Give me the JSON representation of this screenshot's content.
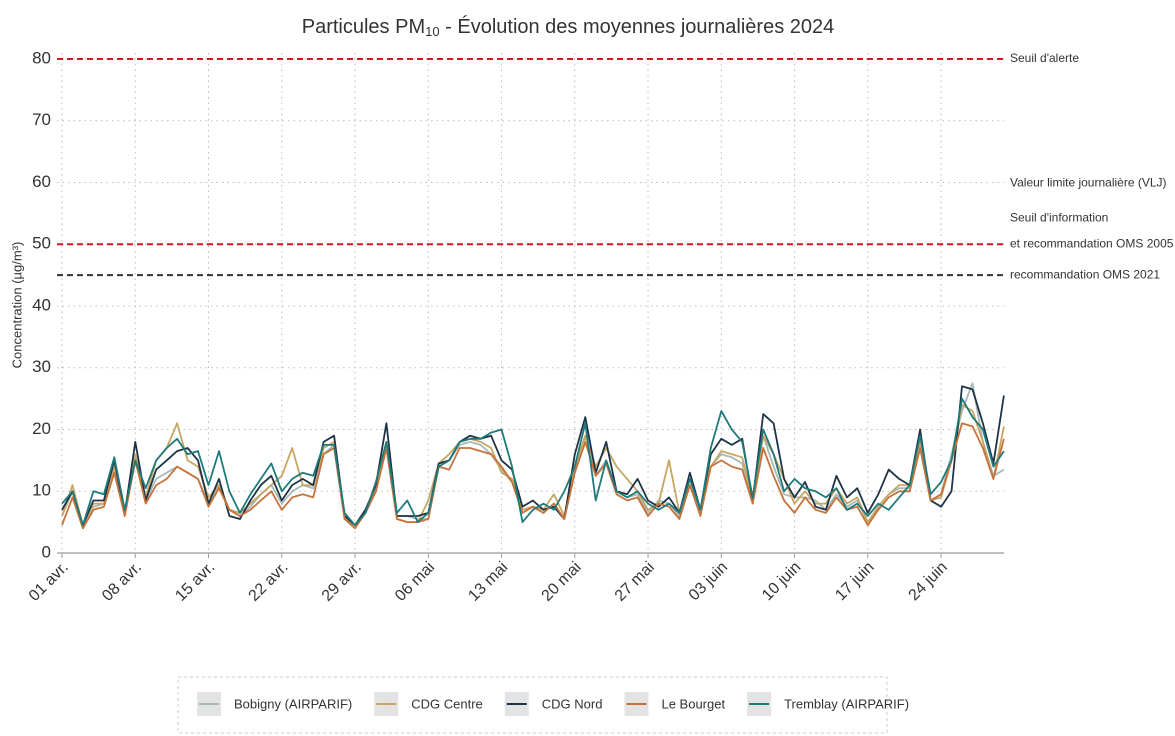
{
  "chart_data": {
    "type": "line",
    "title_parts": [
      "Particules PM",
      "10",
      " - Évolution des moyennes journalières 2024"
    ],
    "y_label": "Concentration (µg/m³)",
    "ylim": [
      0,
      80
    ],
    "yticks": [
      0,
      10,
      20,
      30,
      40,
      50,
      60,
      70,
      80
    ],
    "grid": true,
    "legend": "bottom",
    "categories": [
      "01 avr.",
      null,
      null,
      null,
      null,
      null,
      null,
      "08 avr.",
      null,
      null,
      null,
      null,
      null,
      null,
      "15 avr.",
      null,
      null,
      null,
      null,
      null,
      null,
      "22 avr.",
      null,
      null,
      null,
      null,
      null,
      null,
      "29 avr.",
      null,
      null,
      null,
      null,
      null,
      null,
      "06 mai",
      null,
      null,
      null,
      null,
      null,
      null,
      "13 mai",
      null,
      null,
      null,
      null,
      null,
      null,
      "20 mai",
      null,
      null,
      null,
      null,
      null,
      null,
      "27 mai",
      null,
      null,
      null,
      null,
      null,
      null,
      "03 juin",
      null,
      null,
      null,
      null,
      null,
      null,
      "10 juin",
      null,
      null,
      null,
      null,
      null,
      null,
      "17 juin",
      null,
      null,
      null,
      null,
      null,
      null,
      "24 juin",
      null,
      null,
      null,
      null,
      null,
      null
    ],
    "thresholds": [
      {
        "value": 80,
        "color": "#d0181d",
        "labels": [
          {
            "text": "Seuil d'alerte",
            "color": "#b5282d"
          }
        ]
      },
      {
        "value": 50,
        "color": "#d0181d",
        "labels": [
          {
            "text": "Valeur limite journalière (VLJ)",
            "color": "#b5282d"
          },
          {
            "text": "Seuil d'information",
            "color": "#444444"
          },
          {
            "text": "et recommandation OMS 2005",
            "color": "#444444"
          }
        ]
      },
      {
        "value": 45,
        "color": "#333333",
        "labels": [
          {
            "text": "recommandation OMS 2021",
            "color": "#444444"
          }
        ]
      }
    ],
    "series": [
      {
        "name": "Bobigny (AIRPARIF)",
        "color": "#a8b9b7",
        "values": [
          6,
          10,
          4.5,
          7.5,
          8,
          13,
          6.5,
          15,
          8.5,
          12,
          13,
          14,
          13,
          12,
          8,
          11,
          7,
          6,
          7.5,
          9.5,
          11,
          8,
          10,
          11,
          10.5,
          16,
          17.5,
          6,
          4.5,
          6.5,
          10,
          17,
          6,
          6,
          5.5,
          5.5,
          14,
          15,
          17.5,
          18,
          17.5,
          16,
          13.5,
          11.5,
          7,
          7.5,
          6.5,
          8,
          5.5,
          13,
          19,
          12.5,
          15,
          10,
          9,
          9.5,
          6.5,
          8.5,
          8,
          6,
          11,
          6.5,
          14,
          16,
          15.5,
          14.5,
          8.5,
          19,
          14,
          9.5,
          9,
          9,
          8.5,
          7,
          9.5,
          7.5,
          8.5,
          5,
          7.5,
          9.5,
          10.5,
          10.5,
          17,
          8.5,
          9.5,
          16,
          23,
          27.5,
          18,
          12.5,
          13.5
        ]
      },
      {
        "name": "CDG Centre",
        "color": "#c8a662",
        "values": [
          6,
          11,
          4.5,
          8,
          8,
          14,
          6.5,
          16,
          9,
          15,
          17,
          21,
          15,
          14,
          9,
          11,
          7,
          6.5,
          8,
          9.5,
          11,
          12.5,
          17,
          11,
          11,
          17,
          18,
          5.5,
          4.5,
          7,
          10.5,
          17,
          5.5,
          5,
          5,
          8.5,
          14.5,
          16,
          18,
          18.5,
          18,
          17,
          13,
          12,
          7,
          7.5,
          7,
          9.5,
          6,
          14,
          19,
          14,
          17,
          14,
          12,
          10,
          7,
          8,
          15,
          6.5,
          12,
          7,
          14,
          16.5,
          16,
          15.5,
          8.5,
          19,
          16,
          12,
          8,
          10,
          8,
          8,
          10.5,
          8,
          9,
          5,
          7.5,
          9.5,
          11,
          11,
          18,
          8.5,
          9,
          15,
          24,
          23,
          18,
          12,
          20.5
        ]
      },
      {
        "name": "CDG Nord",
        "color": "#1e3446",
        "values": [
          7,
          10,
          4.5,
          8.5,
          8.5,
          15,
          6.5,
          18,
          8.5,
          13.5,
          15,
          16.5,
          17,
          15,
          8,
          12,
          6,
          5.5,
          8.5,
          11,
          12.5,
          8.5,
          11,
          12,
          11,
          18,
          19,
          6,
          4.5,
          7,
          11,
          21,
          6,
          6,
          6,
          6.5,
          14.5,
          15,
          18,
          19,
          18.5,
          19,
          15,
          13.5,
          7.5,
          8.5,
          7,
          7.5,
          5.5,
          16,
          22,
          13,
          18,
          10,
          9.5,
          12,
          8.5,
          7.5,
          9,
          6.5,
          13,
          7,
          16,
          18.5,
          17.5,
          18.5,
          8.5,
          22.5,
          21,
          12,
          9,
          11.5,
          7.5,
          7,
          12.5,
          9,
          10.5,
          6.5,
          9.5,
          13.5,
          12,
          11,
          20,
          8.5,
          7.5,
          10,
          27,
          26.5,
          21,
          14.5,
          25.5
        ]
      },
      {
        "name": "Le Bourget",
        "color": "#c6723a",
        "values": [
          4.5,
          9,
          4,
          7,
          7.5,
          13,
          6,
          15,
          8,
          11,
          12,
          14,
          13,
          12,
          7.5,
          10.5,
          7,
          6,
          7,
          8.5,
          10,
          7,
          9,
          9.5,
          9,
          16,
          17,
          5.5,
          4,
          6.5,
          10,
          17,
          5.5,
          5,
          5,
          5.5,
          14,
          13.5,
          17,
          17,
          16.5,
          16,
          14,
          11.5,
          6.5,
          7.5,
          6.5,
          8,
          5.5,
          13,
          18,
          12.5,
          14.5,
          9.5,
          8.5,
          9,
          6,
          8,
          7.5,
          5.5,
          11,
          6,
          14,
          15,
          14,
          13.5,
          8,
          17,
          12.5,
          8.5,
          6.5,
          9,
          7,
          6.5,
          9,
          7,
          7.5,
          4.5,
          7,
          9,
          10,
          10,
          17,
          8.5,
          9.5,
          15,
          21,
          20.5,
          17,
          12,
          18.5
        ]
      },
      {
        "name": "Tremblay (AIRPARIF)",
        "color": "#1f7b7b",
        "values": [
          8,
          10,
          4.5,
          10,
          9.5,
          15.5,
          7,
          15,
          10.5,
          15,
          17,
          18.5,
          16,
          16.5,
          11,
          16.5,
          10,
          6.5,
          9.5,
          12,
          14.5,
          10,
          12,
          13,
          12.5,
          17.5,
          17.5,
          6.5,
          4.5,
          6.5,
          11.5,
          18,
          6.5,
          8.5,
          5,
          6.5,
          14,
          15,
          18,
          18.5,
          18.5,
          19.5,
          20,
          14,
          5,
          7,
          8,
          7,
          10,
          14,
          21,
          8.5,
          15,
          10,
          9,
          10,
          8,
          7,
          8,
          6.5,
          12,
          7,
          17,
          23,
          20,
          18,
          9,
          20,
          16,
          10,
          12,
          10.5,
          10,
          9,
          10.5,
          7,
          8,
          6,
          8,
          7,
          9,
          11,
          19,
          9.5,
          11.5,
          15,
          25,
          22,
          20,
          14,
          16.5
        ]
      }
    ]
  }
}
